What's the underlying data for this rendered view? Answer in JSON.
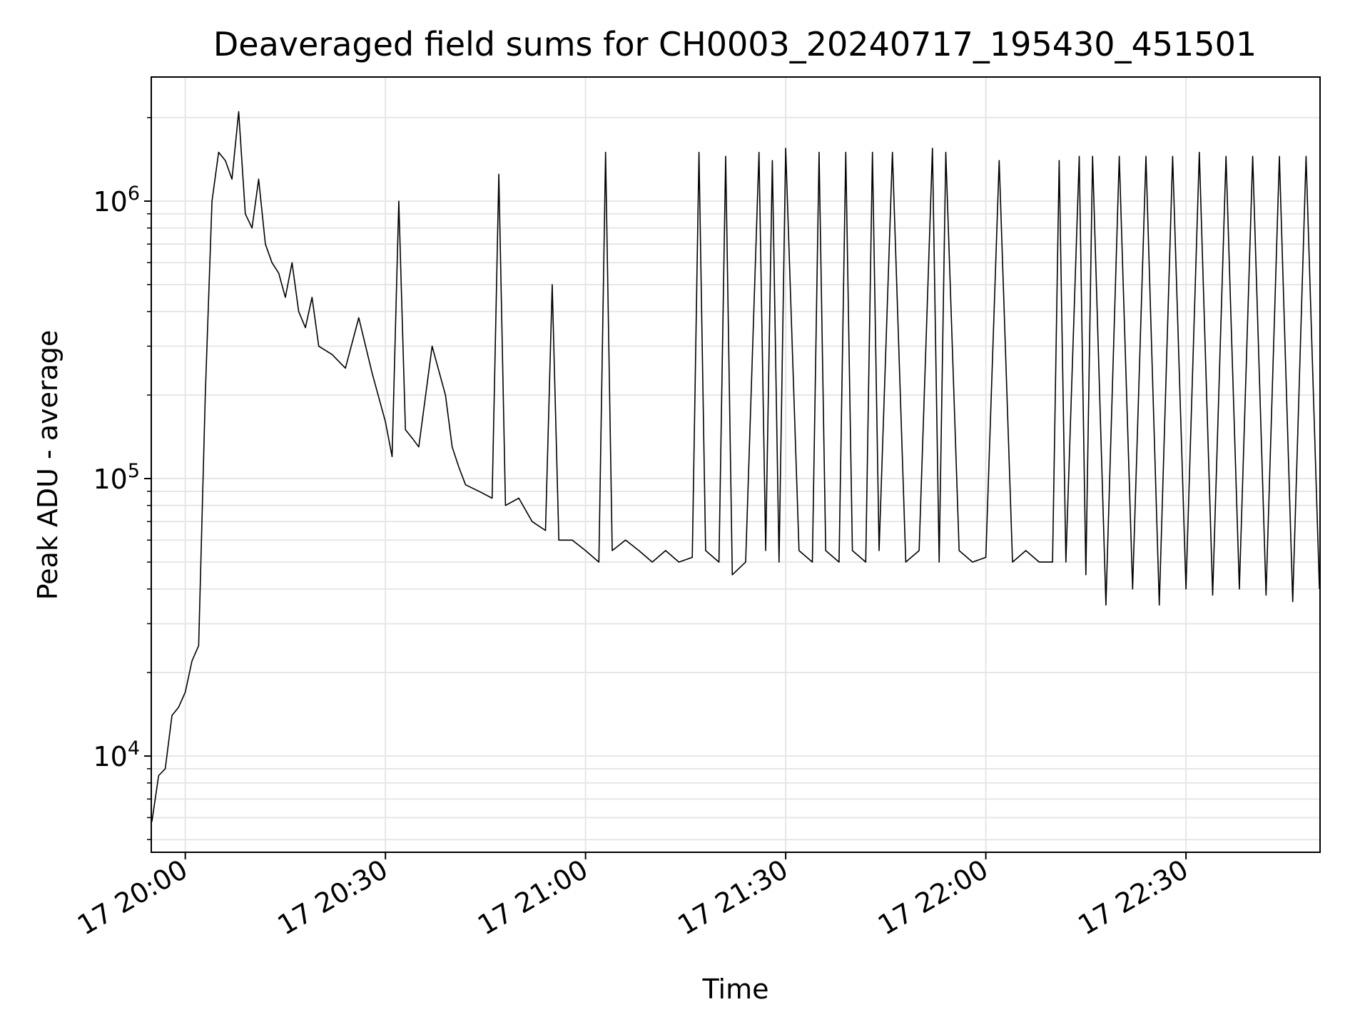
{
  "chart_data": {
    "type": "line",
    "title": "Deaveraged field sums for CH0003_20240717_195430_451501",
    "xlabel": "Time",
    "ylabel": "Peak ADU - average",
    "y_scale": "log",
    "ylim": [
      4500,
      2800000
    ],
    "x_range_minutes_of_day": [
      1194.9,
      1370.1
    ],
    "x_ticks": [
      {
        "minute": 1200,
        "label": "17 20:00"
      },
      {
        "minute": 1230,
        "label": "17 20:30"
      },
      {
        "minute": 1260,
        "label": "17 21:00"
      },
      {
        "minute": 1290,
        "label": "17 21:30"
      },
      {
        "minute": 1320,
        "label": "17 22:00"
      },
      {
        "minute": 1350,
        "label": "17 22:30"
      }
    ],
    "y_ticks": [
      {
        "value": 10000,
        "base": "10",
        "exp": "4"
      },
      {
        "value": 100000,
        "base": "10",
        "exp": "5"
      },
      {
        "value": 1000000,
        "base": "10",
        "exp": "6"
      }
    ],
    "grid": true,
    "line_color": "#000000",
    "grid_color": "#e6e6e6",
    "series": [
      {
        "x": [
          "17 19:55",
          "17 19:56",
          "17 19:57",
          "17 19:58",
          "17 19:59",
          "17 20:00",
          "17 20:01",
          "17 20:02",
          "17 20:03",
          "17 20:04",
          "17 20:05",
          "17 20:06",
          "17 20:07",
          "17 20:08",
          "17 20:09",
          "17 20:10",
          "17 20:11",
          "17 20:12",
          "17 20:13",
          "17 20:14",
          "17 20:15",
          "17 20:16",
          "17 20:17",
          "17 20:18",
          "17 20:19",
          "17 20:20",
          "17 20:22",
          "17 20:24",
          "17 20:26",
          "17 20:28",
          "17 20:30",
          "17 20:31",
          "17 20:32",
          "17 20:33",
          "17 20:34",
          "17 20:35",
          "17 20:37",
          "17 20:39",
          "17 20:40",
          "17 20:41",
          "17 20:42",
          "17 20:44",
          "17 20:46",
          "17 20:47",
          "17 20:48",
          "17 20:50",
          "17 20:52",
          "17 20:54",
          "17 20:55",
          "17 20:56",
          "17 20:58",
          "17 21:00",
          "17 21:02",
          "17 21:03",
          "17 21:04",
          "17 21:06",
          "17 21:08",
          "17 21:10",
          "17 21:12",
          "17 21:14",
          "17 21:16",
          "17 21:17",
          "17 21:18",
          "17 21:20",
          "17 21:21",
          "17 21:22",
          "17 21:24",
          "17 21:26",
          "17 21:27",
          "17 21:28",
          "17 21:29",
          "17 21:30",
          "17 21:32",
          "17 21:34",
          "17 21:35",
          "17 21:36",
          "17 21:38",
          "17 21:39",
          "17 21:40",
          "17 21:42",
          "17 21:43",
          "17 21:44",
          "17 21:46",
          "17 21:48",
          "17 21:50",
          "17 21:52",
          "17 21:53",
          "17 21:54",
          "17 21:56",
          "17 21:58",
          "17 22:00",
          "17 22:02",
          "17 22:04",
          "17 22:06",
          "17 22:08",
          "17 22:10",
          "17 22:11",
          "17 22:12",
          "17 22:14",
          "17 22:15",
          "17 22:16",
          "17 22:18",
          "17 22:20",
          "17 22:22",
          "17 22:24",
          "17 22:26",
          "17 22:28",
          "17 22:30",
          "17 22:32",
          "17 22:34",
          "17 22:36",
          "17 22:38",
          "17 22:40",
          "17 22:42",
          "17 22:44",
          "17 22:46",
          "17 22:48",
          "17 22:50"
        ],
        "y": [
          5800,
          8500,
          9000,
          14000,
          15000,
          17000,
          22000,
          25000,
          200000,
          1000000,
          1500000,
          1400000,
          1200000,
          2100000,
          900000,
          800000,
          1200000,
          700000,
          600000,
          550000,
          450000,
          600000,
          400000,
          350000,
          450000,
          300000,
          280000,
          250000,
          380000,
          240000,
          160000,
          120000,
          1000000,
          150000,
          140000,
          130000,
          300000,
          200000,
          130000,
          110000,
          95000,
          90000,
          85000,
          1250000,
          80000,
          85000,
          70000,
          65000,
          500000,
          60000,
          60000,
          55000,
          50000,
          1500000,
          55000,
          60000,
          55000,
          50000,
          55000,
          50000,
          52000,
          1500000,
          55000,
          50000,
          1450000,
          45000,
          50000,
          1500000,
          55000,
          1400000,
          50000,
          1550000,
          55000,
          50000,
          1500000,
          55000,
          50000,
          1500000,
          55000,
          50000,
          1500000,
          55000,
          1500000,
          50000,
          55000,
          1550000,
          50000,
          1500000,
          55000,
          50000,
          52000,
          1400000,
          50000,
          55000,
          50000,
          50000,
          1400000,
          50000,
          1450000,
          45000,
          1450000,
          35000,
          1450000,
          40000,
          1450000,
          35000,
          1450000,
          40000,
          1500000,
          38000,
          1450000,
          40000,
          1450000,
          38000,
          1450000,
          36000,
          1450000,
          40000
        ]
      }
    ]
  }
}
